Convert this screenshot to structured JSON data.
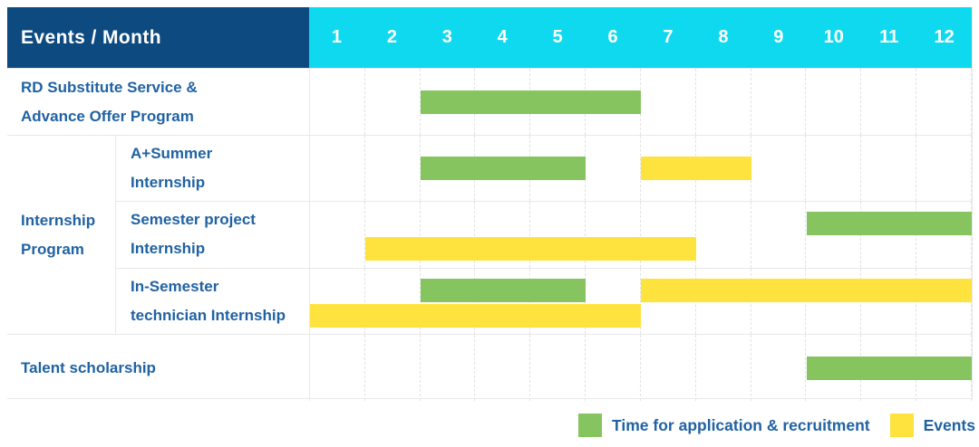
{
  "colors": {
    "navy_header": "#0d4a80",
    "cyan_header": "#0fd9ef",
    "green_bar": "#85c45f",
    "yellow_bar": "#fee33e",
    "text_blue": "#2062a3",
    "grid_line": "#e8e8e8",
    "grid_dashed": "#e2e2e2"
  },
  "table": {
    "corner_label": "Events / Month",
    "months": [
      "1",
      "2",
      "3",
      "4",
      "5",
      "6",
      "7",
      "8",
      "9",
      "10",
      "11",
      "12"
    ]
  },
  "chart_data": {
    "type": "gantt",
    "title": "Events / Month",
    "x_unit": "month",
    "x_range": [
      1,
      12
    ],
    "grid": "dashed-vertical-per-month",
    "bar_types": {
      "application": {
        "label": "Time for application & recruitment",
        "color": "#85c45f"
      },
      "event": {
        "label": "Events",
        "color": "#fee33e"
      }
    },
    "rows": [
      {
        "label": "RD Substitute Service & Advance Offer Program",
        "label_lines": [
          "RD Substitute Service &",
          "Advance Offer Program"
        ],
        "bars": [
          {
            "type": "application",
            "start": 3,
            "end": 6,
            "line": 0
          }
        ]
      },
      {
        "label": "Internship Program",
        "label_lines": [
          "Internship",
          "Program"
        ],
        "children": [
          {
            "label": "A+Summer Internship",
            "label_lines": [
              "A+Summer",
              "Internship"
            ],
            "bars": [
              {
                "type": "application",
                "start": 3,
                "end": 5,
                "line": 0
              },
              {
                "type": "event",
                "start": 7,
                "end": 8,
                "line": 0
              }
            ]
          },
          {
            "label": "Semester project Internship",
            "label_lines": [
              "Semester project",
              "Internship"
            ],
            "bars": [
              {
                "type": "application",
                "start": 10,
                "end": 12,
                "line": 0
              },
              {
                "type": "event",
                "start": 2,
                "end": 7,
                "line": 1
              }
            ]
          },
          {
            "label": "In-Semester technician Internship",
            "label_lines": [
              "In-Semester",
              "technician Internship"
            ],
            "bars": [
              {
                "type": "application",
                "start": 3,
                "end": 5,
                "line": 0
              },
              {
                "type": "event",
                "start": 7,
                "end": 12,
                "line": 0
              },
              {
                "type": "event",
                "start": 1,
                "end": 6,
                "line": 1
              }
            ]
          }
        ]
      },
      {
        "label": "Talent scholarship",
        "label_lines": [
          "Talent scholarship"
        ],
        "bars": [
          {
            "type": "application",
            "start": 10,
            "end": 12,
            "line": 0
          }
        ]
      }
    ]
  },
  "legend": {
    "items": [
      "application",
      "event"
    ]
  }
}
